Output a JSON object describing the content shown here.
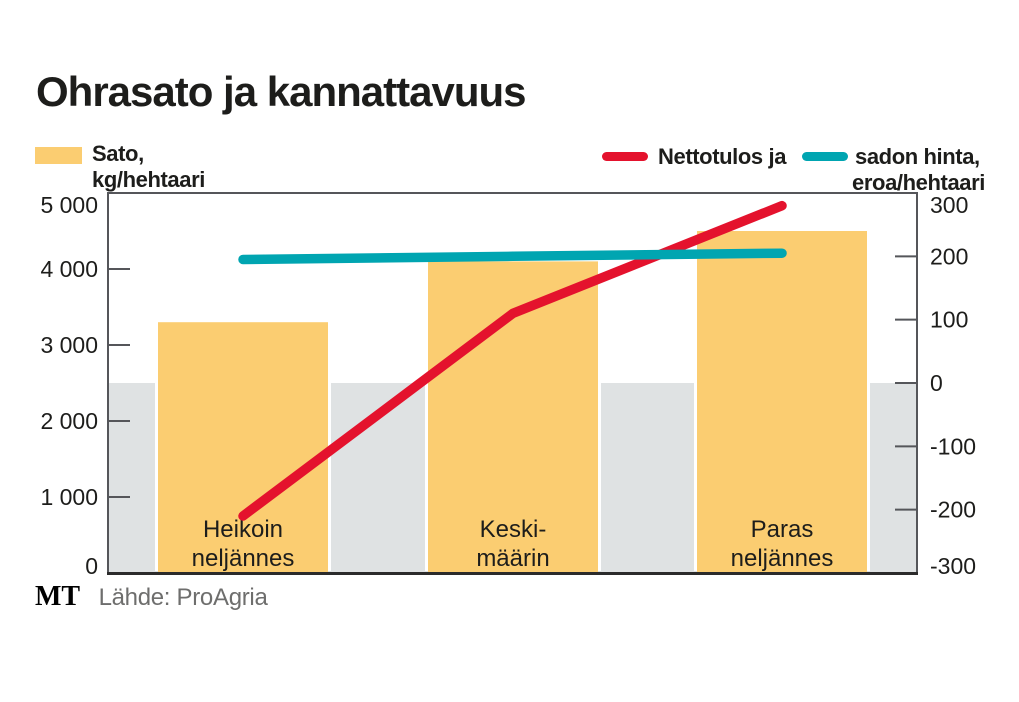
{
  "title": "Ohrasato ja kannattavuus",
  "colors": {
    "bar": "#FBCD71",
    "net_line": "#E4122D",
    "price_line": "#00A5B1",
    "negative_band": "#DFE2E3",
    "frame": "#55565A",
    "text": "#1D1D1B",
    "source_text": "#6E6E6D"
  },
  "legend": {
    "bars": {
      "line1": "Sato,",
      "line2": "kg/hehtaari"
    },
    "net": {
      "label": "Nettotulos ja"
    },
    "price": {
      "line1": "sadon hinta,",
      "line2": "eroa/hehtaari"
    }
  },
  "footer": {
    "logo": "MT",
    "source": "Lähde: ProAgria"
  },
  "chart_data": {
    "type": "bar",
    "title": "Ohrasato ja kannattavuus",
    "categories": [
      "Heikoin neljännes",
      "Keski-määrin",
      "Paras neljännes"
    ],
    "category_lines": [
      [
        "Heikoin",
        "neljännes"
      ],
      [
        "Keski-",
        "määrin"
      ],
      [
        "Paras",
        "neljännes"
      ]
    ],
    "bar_series": {
      "name": "Sato, kg/hehtaari",
      "axis": "left",
      "color": "#FBCD71",
      "values": [
        3300,
        4100,
        4500
      ]
    },
    "line_series": [
      {
        "name": "Nettotulos, eroa/hehtaari",
        "axis": "right",
        "color": "#E4122D",
        "values": [
          -210,
          110,
          280
        ]
      },
      {
        "name": "sadon hinta, eroa/hehtaari",
        "axis": "right",
        "color": "#00A5B1",
        "values": [
          195,
          200,
          205
        ]
      }
    ],
    "left_axis": {
      "min": 0,
      "max": 5000,
      "ticks": [
        0,
        1000,
        2000,
        3000,
        4000,
        5000
      ],
      "tick_labels": [
        "0",
        "1 000",
        "2 000",
        "3 000",
        "4 000",
        "5 000"
      ]
    },
    "right_axis": {
      "min": -300,
      "max": 300,
      "ticks": [
        -300,
        -200,
        -100,
        0,
        100,
        200,
        300
      ],
      "tick_labels": [
        "-300",
        "-200",
        "-100",
        "0",
        "100",
        "200",
        "300"
      ]
    },
    "shaded_band": {
      "axis": "right",
      "from": -300,
      "to": 0,
      "color": "#DFE2E3"
    },
    "grid": false,
    "legend_position": "top"
  }
}
